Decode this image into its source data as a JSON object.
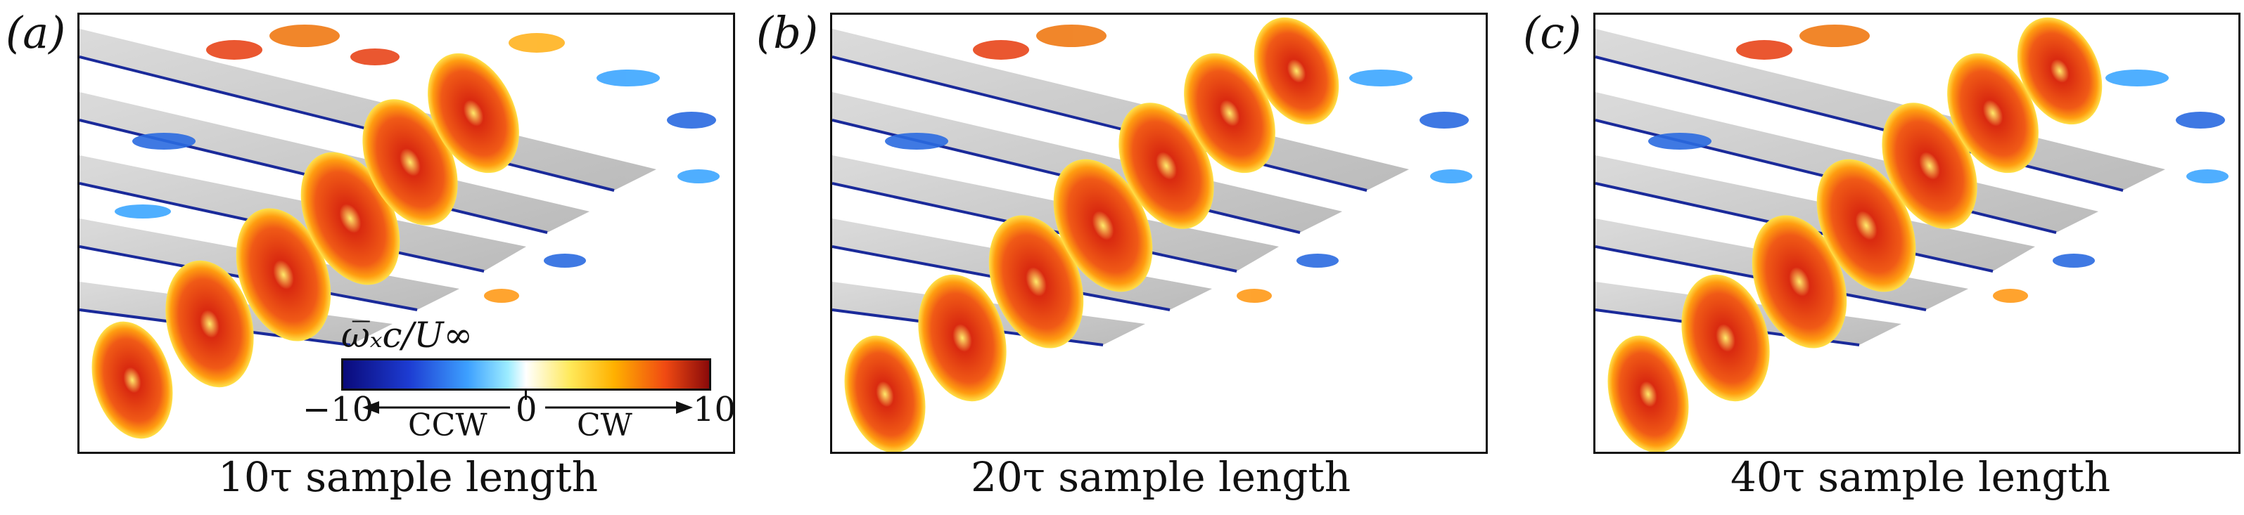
{
  "panels": [
    {
      "label": "(a)",
      "caption": "10τ sample length"
    },
    {
      "label": "(b)",
      "caption": "20τ sample length"
    },
    {
      "label": "(c)",
      "caption": "40τ sample length"
    }
  ],
  "colorbar": {
    "title": "ω̅ₓc/U∞",
    "min_label": "−10",
    "mid_label": "0",
    "max_label": "10",
    "left_text": "CCW",
    "right_text": "CW",
    "range": [
      -10,
      10
    ],
    "colors": [
      "#0a0a7a",
      "#1d3cd2",
      "#3da0ff",
      "#9cecff",
      "#ffffff",
      "#ffe95a",
      "#ffb100",
      "#f04a12",
      "#8a0a0a"
    ]
  }
}
